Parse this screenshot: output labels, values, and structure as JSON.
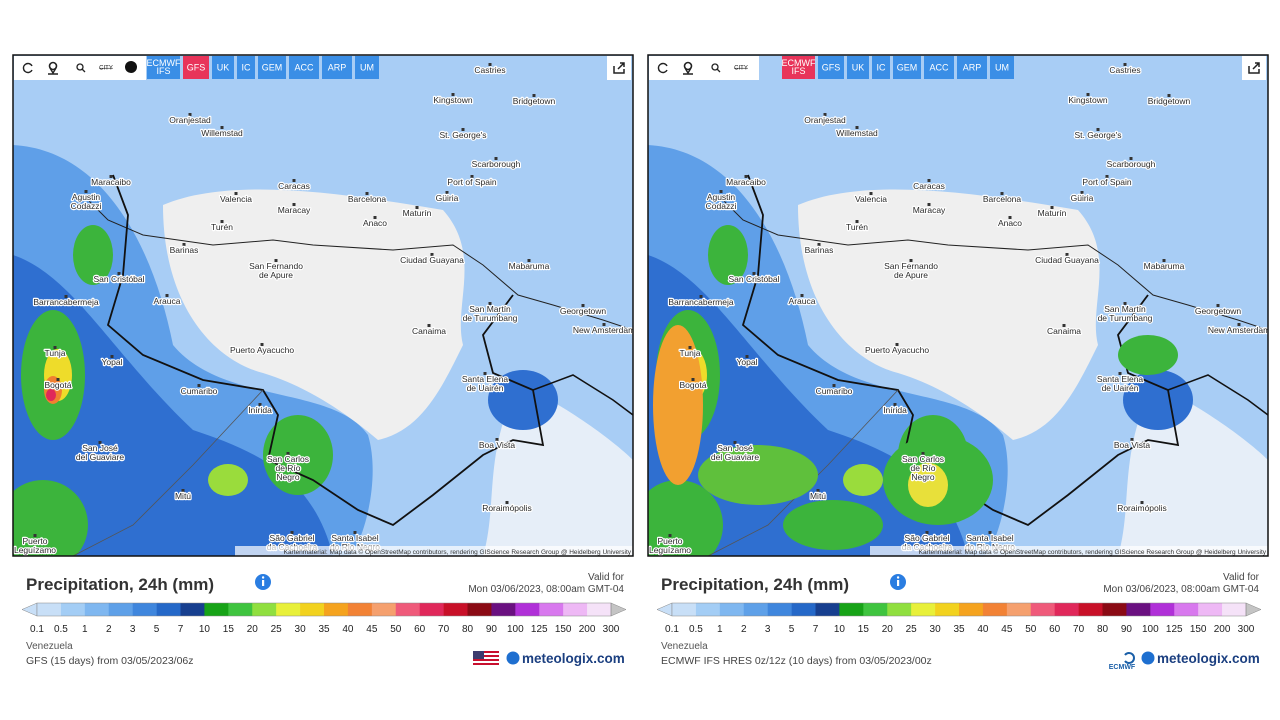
{
  "toolbar": {
    "city": "CITY",
    "models": [
      "ECMWF IFS",
      "GFS",
      "UK",
      "IC",
      "GEM",
      "ACC",
      "ARP",
      "UM"
    ],
    "color": "#3a8ee6",
    "active_color": "#e8345a"
  },
  "map": {
    "places": [
      [
        "Castries"
      ],
      [
        "Kingstown"
      ],
      [
        "Bridgetown"
      ],
      [
        "Oranjestad"
      ],
      [
        "Willemstad"
      ],
      [
        "St. George's"
      ],
      [
        "Scarborough"
      ],
      [
        "Maracaibo"
      ],
      [
        "Port of Spain"
      ],
      [
        "Caracas"
      ],
      [
        "Agustin",
        "Codazzi"
      ],
      [
        "Valencia"
      ],
      [
        "Barcelona"
      ],
      [
        "Güiria"
      ],
      [
        "Maracay"
      ],
      [
        "Maturín"
      ],
      [
        "Turén"
      ],
      [
        "Anaco"
      ],
      [
        "Barinas"
      ],
      [
        "Ciudad Guayana"
      ],
      [
        "Mabaruma"
      ],
      [
        "San Fernando",
        "de Apure"
      ],
      [
        "San Cristóbal"
      ],
      [
        "Barrancabermeja"
      ],
      [
        "Arauca"
      ],
      [
        "Georgetown"
      ],
      [
        "San Martín",
        "de Turumbang"
      ],
      [
        "New Amsterdam"
      ],
      [
        "Canaima"
      ],
      [
        "Tunja"
      ],
      [
        "Puerto Ayacucho"
      ],
      [
        "Yopal"
      ],
      [
        "Bogotá"
      ],
      [
        "Santa Elena",
        "de Uairén"
      ],
      [
        "Cumaribo"
      ],
      [
        "Inírida"
      ],
      [
        "Boa Vista"
      ],
      [
        "San José",
        "del Guaviare"
      ],
      [
        "San Carlos",
        "de Río",
        "Negro"
      ],
      [
        "Mitú"
      ],
      [
        "Roraimópolis"
      ],
      [
        "São Gabriel",
        "da Cachoeira"
      ],
      [
        "Santa Isabel",
        "do Rio Negro"
      ],
      [
        "Puerto",
        "Leguízamo"
      ]
    ],
    "attribution": "Kartenmaterial: Map data © OpenStreetMap contributors, rendering GIScience Research Group @ Heidelberg University"
  },
  "legend": {
    "title": "Precipitation, 24h (mm)",
    "valid_label": "Valid for",
    "valid_time": "Mon 03/06/2023, 08:00am GMT-04",
    "region": "Venezuela",
    "brand": "meteologix.com",
    "ticks": [
      0.1,
      0.5,
      1,
      2,
      3,
      5,
      7,
      10,
      15,
      20,
      25,
      30,
      35,
      40,
      45,
      50,
      60,
      70,
      80,
      90,
      100,
      125,
      150,
      200,
      300
    ],
    "colors": [
      "#c8dff7",
      "#a3cdf5",
      "#7fb7f0",
      "#5ea0e8",
      "#3f86dd",
      "#2568c8",
      "#173f8f",
      "#17a317",
      "#3fc43f",
      "#90df3f",
      "#e8f03a",
      "#f2d21e",
      "#f5a31e",
      "#f28235",
      "#f5a06e",
      "#ef5a7a",
      "#e0285a",
      "#c81028",
      "#8a0a14",
      "#6a1080",
      "#b030d8",
      "#d878ee",
      "#eeb8f5",
      "#f5e2f8"
    ],
    "above_color": "#c4c4c4"
  },
  "panels": [
    {
      "active_model": 1,
      "source": "GFS (15 days) from 03/05/2023/06z"
    },
    {
      "active_model": 0,
      "source": "ECMWF IFS HRES 0z/12z (10 days) from 03/05/2023/00z",
      "provider": "ECMWF"
    }
  ]
}
